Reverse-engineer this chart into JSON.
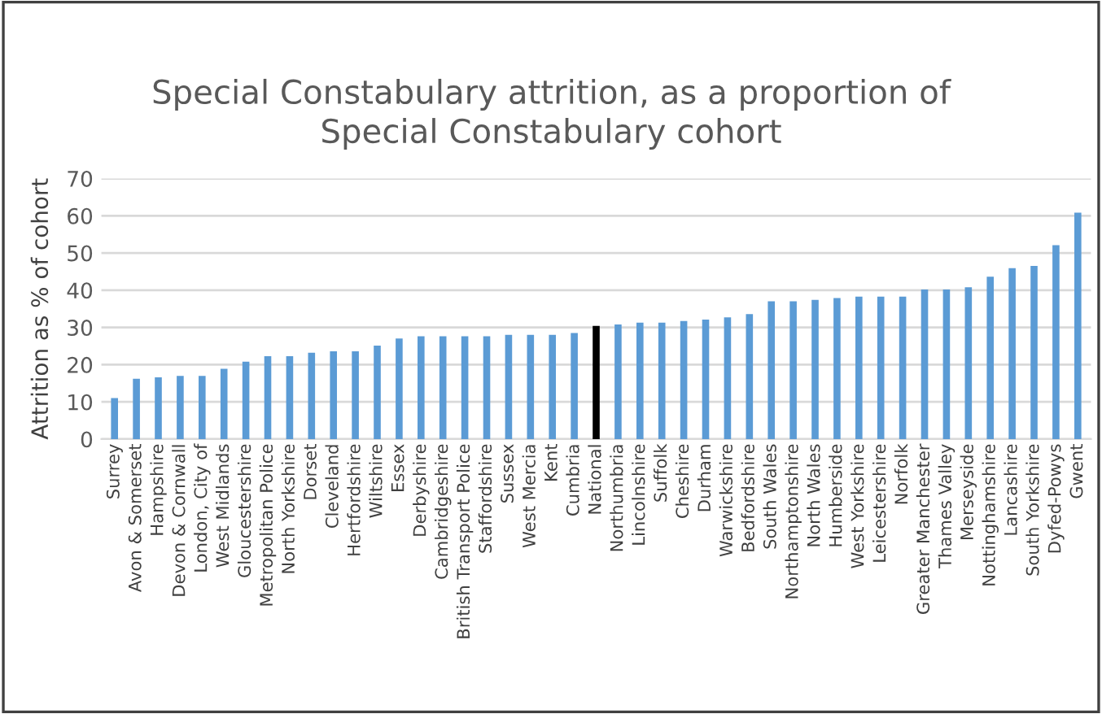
{
  "chart_data": {
    "type": "bar",
    "title": "Special Constabulary attrition, as a proportion of\nSpecial Constabulary cohort",
    "ylabel": "Attrition as % of cohort",
    "categories": [
      "Surrey",
      "Avon & Somerset",
      "Hampshire",
      "Devon & Cornwall",
      "London, City of",
      "West Midlands",
      "Gloucestershire",
      "Metropolitan Police",
      "North Yorkshire",
      "Dorset",
      "Cleveland",
      "Hertfordshire",
      "Wiltshire",
      "Essex",
      "Derbyshire",
      "Cambridgeshire",
      "British Transport Police",
      "Staffordshire",
      "Sussex",
      "West Mercia",
      "Kent",
      "Cumbria",
      "National",
      "Northumbria",
      "Lincolnshire",
      "Suffolk",
      "Cheshire",
      "Durham",
      "Warwickshire",
      "Bedfordshire",
      "South Wales",
      "Northamptonshire",
      "North Wales",
      "Humberside",
      "West Yorkshire",
      "Leicestershire",
      "Norfolk",
      "Greater Manchester",
      "Thames Valley",
      "Merseyside",
      "Nottinghamshire",
      "Lancashire",
      "South Yorkshire",
      "Dyfed-Powys",
      "Gwent"
    ],
    "values": [
      11.0,
      16.2,
      16.6,
      17.0,
      17.0,
      18.9,
      20.8,
      22.3,
      22.3,
      23.2,
      23.6,
      23.6,
      25.1,
      27.0,
      27.6,
      27.6,
      27.6,
      27.6,
      28.0,
      28.0,
      28.0,
      28.5,
      30.4,
      30.8,
      31.3,
      31.3,
      31.7,
      32.1,
      32.7,
      33.6,
      37.0,
      37.0,
      37.4,
      37.9,
      38.3,
      38.3,
      38.3,
      40.2,
      40.2,
      40.8,
      43.6,
      45.9,
      46.5,
      52.1,
      60.8
    ],
    "colors": [
      "#5b9bd5",
      "#5b9bd5",
      "#5b9bd5",
      "#5b9bd5",
      "#5b9bd5",
      "#5b9bd5",
      "#5b9bd5",
      "#5b9bd5",
      "#5b9bd5",
      "#5b9bd5",
      "#5b9bd5",
      "#5b9bd5",
      "#5b9bd5",
      "#5b9bd5",
      "#5b9bd5",
      "#5b9bd5",
      "#5b9bd5",
      "#5b9bd5",
      "#5b9bd5",
      "#5b9bd5",
      "#5b9bd5",
      "#5b9bd5",
      "#000000",
      "#5b9bd5",
      "#5b9bd5",
      "#5b9bd5",
      "#5b9bd5",
      "#5b9bd5",
      "#5b9bd5",
      "#5b9bd5",
      "#5b9bd5",
      "#5b9bd5",
      "#5b9bd5",
      "#5b9bd5",
      "#5b9bd5",
      "#5b9bd5",
      "#5b9bd5",
      "#5b9bd5",
      "#5b9bd5",
      "#5b9bd5",
      "#5b9bd5",
      "#5b9bd5",
      "#5b9bd5",
      "#5b9bd5",
      "#5b9bd5"
    ],
    "ylim": [
      0,
      70
    ],
    "yticks": [
      0,
      10,
      20,
      30,
      40,
      50,
      60,
      70
    ],
    "grid": "y"
  }
}
